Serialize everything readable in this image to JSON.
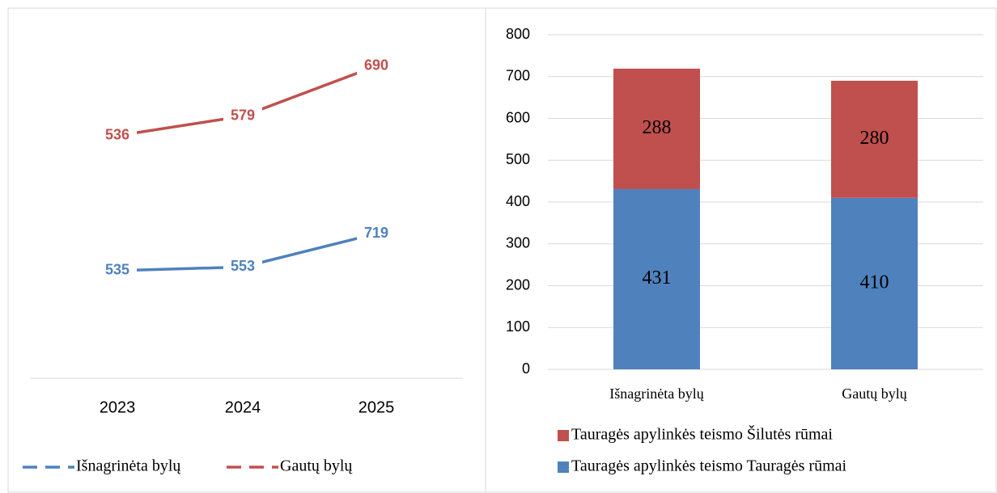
{
  "chart_data": [
    {
      "type": "line",
      "categories": [
        "2023",
        "2024",
        "2025"
      ],
      "series": [
        {
          "name": "Išnagrinėta bylų",
          "color": "#4f81bd",
          "values": [
            535,
            553,
            719
          ]
        },
        {
          "name": "Gautų bylų",
          "color": "#c0504d",
          "values": [
            536,
            579,
            690
          ],
          "axis": "y2"
        }
      ],
      "ylim": [
        0,
        1800
      ],
      "y2lim": [
        0,
        800
      ],
      "legend": "bottom"
    },
    {
      "type": "bar",
      "stacked": true,
      "categories": [
        "Išnagrinėta bylų",
        "Gautų bylų"
      ],
      "series": [
        {
          "name": "Tauragės apylinkės teismo Tauragės rūmai",
          "color": "#4f81bd",
          "values": [
            431,
            410
          ]
        },
        {
          "name": "Tauragės apylinkės teismo Šilutės rūmai",
          "color": "#c0504d",
          "values": [
            288,
            280
          ]
        }
      ],
      "ylim": [
        0,
        800
      ],
      "yticks": [
        0,
        100,
        200,
        300,
        400,
        500,
        600,
        700,
        800
      ],
      "grid": true,
      "legend": "bottom"
    }
  ]
}
